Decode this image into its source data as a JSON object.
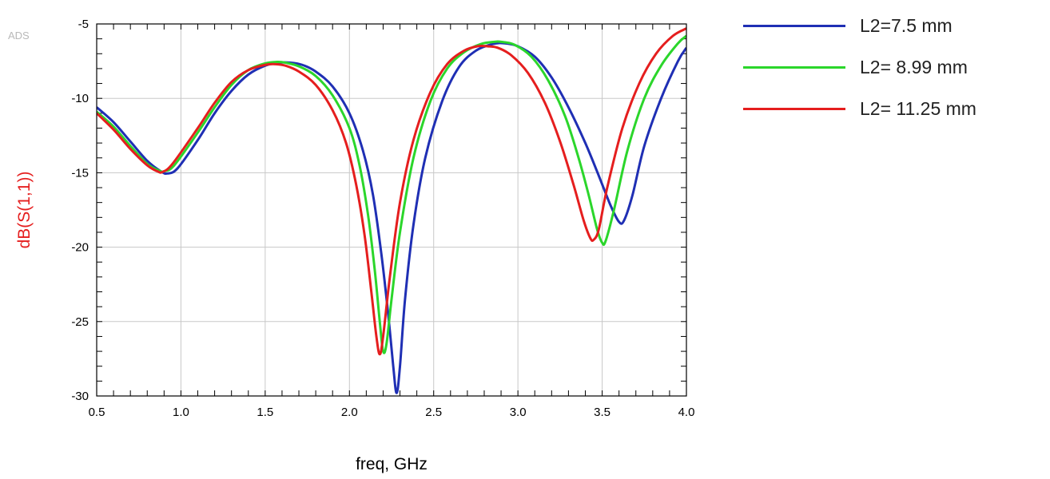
{
  "chart_data": {
    "type": "line",
    "watermark": "ADS",
    "xlabel": "freq, GHz",
    "ylabel": "dB(S(1,1))",
    "xlim": [
      0.5,
      4.0
    ],
    "ylim": [
      -30,
      -5
    ],
    "xticks": [
      "0.5",
      "1.0",
      "1.5",
      "2.0",
      "2.5",
      "3.0",
      "3.5",
      "4.0"
    ],
    "yticks": [
      "-5",
      "-10",
      "-15",
      "-20",
      "-25",
      "-30"
    ],
    "grid": true,
    "legend_position": "top-right, outside plot",
    "series": [
      {
        "name": "L2=7.5 mm",
        "color": "#1f2fb4",
        "points": [
          [
            0.5,
            -10.6
          ],
          [
            0.6,
            -11.6
          ],
          [
            0.7,
            -12.9
          ],
          [
            0.8,
            -14.2
          ],
          [
            0.88,
            -14.9
          ],
          [
            0.92,
            -15.05
          ],
          [
            0.98,
            -14.7
          ],
          [
            1.1,
            -12.8
          ],
          [
            1.2,
            -11.0
          ],
          [
            1.3,
            -9.5
          ],
          [
            1.4,
            -8.4
          ],
          [
            1.5,
            -7.8
          ],
          [
            1.58,
            -7.6
          ],
          [
            1.65,
            -7.6
          ],
          [
            1.72,
            -7.75
          ],
          [
            1.8,
            -8.2
          ],
          [
            1.9,
            -9.2
          ],
          [
            2.0,
            -11.0
          ],
          [
            2.08,
            -13.5
          ],
          [
            2.14,
            -16.5
          ],
          [
            2.19,
            -20.5
          ],
          [
            2.23,
            -24.5
          ],
          [
            2.26,
            -28.0
          ],
          [
            2.28,
            -29.8
          ],
          [
            2.3,
            -28.0
          ],
          [
            2.33,
            -23.5
          ],
          [
            2.38,
            -18.5
          ],
          [
            2.45,
            -14.0
          ],
          [
            2.55,
            -10.2
          ],
          [
            2.65,
            -7.9
          ],
          [
            2.75,
            -6.8
          ],
          [
            2.85,
            -6.35
          ],
          [
            2.92,
            -6.3
          ],
          [
            3.0,
            -6.5
          ],
          [
            3.1,
            -7.2
          ],
          [
            3.2,
            -8.6
          ],
          [
            3.3,
            -10.6
          ],
          [
            3.4,
            -13.0
          ],
          [
            3.48,
            -15.2
          ],
          [
            3.55,
            -17.2
          ],
          [
            3.6,
            -18.3
          ],
          [
            3.63,
            -18.2
          ],
          [
            3.68,
            -16.5
          ],
          [
            3.75,
            -13.2
          ],
          [
            3.85,
            -10.0
          ],
          [
            3.95,
            -7.5
          ],
          [
            4.0,
            -6.6
          ]
        ]
      },
      {
        "name": "L2= 8.99 mm",
        "color": "#2bd62b",
        "points": [
          [
            0.5,
            -10.9
          ],
          [
            0.6,
            -11.9
          ],
          [
            0.7,
            -13.2
          ],
          [
            0.8,
            -14.4
          ],
          [
            0.87,
            -14.85
          ],
          [
            0.9,
            -14.9
          ],
          [
            0.96,
            -14.5
          ],
          [
            1.1,
            -12.3
          ],
          [
            1.2,
            -10.6
          ],
          [
            1.3,
            -9.1
          ],
          [
            1.4,
            -8.1
          ],
          [
            1.5,
            -7.65
          ],
          [
            1.57,
            -7.55
          ],
          [
            1.62,
            -7.6
          ],
          [
            1.7,
            -7.85
          ],
          [
            1.8,
            -8.5
          ],
          [
            1.9,
            -9.8
          ],
          [
            2.0,
            -12.0
          ],
          [
            2.06,
            -14.5
          ],
          [
            2.11,
            -17.8
          ],
          [
            2.15,
            -21.5
          ],
          [
            2.18,
            -25.0
          ],
          [
            2.2,
            -27.0
          ],
          [
            2.22,
            -26.5
          ],
          [
            2.25,
            -23.5
          ],
          [
            2.3,
            -19.0
          ],
          [
            2.38,
            -14.0
          ],
          [
            2.48,
            -10.2
          ],
          [
            2.58,
            -8.0
          ],
          [
            2.68,
            -6.9
          ],
          [
            2.78,
            -6.35
          ],
          [
            2.86,
            -6.2
          ],
          [
            2.9,
            -6.2
          ],
          [
            2.98,
            -6.4
          ],
          [
            3.08,
            -7.2
          ],
          [
            3.18,
            -8.8
          ],
          [
            3.28,
            -11.2
          ],
          [
            3.36,
            -14.0
          ],
          [
            3.42,
            -16.5
          ],
          [
            3.47,
            -18.8
          ],
          [
            3.5,
            -19.7
          ],
          [
            3.52,
            -19.6
          ],
          [
            3.57,
            -17.5
          ],
          [
            3.65,
            -13.5
          ],
          [
            3.75,
            -10.0
          ],
          [
            3.85,
            -7.8
          ],
          [
            3.95,
            -6.3
          ],
          [
            4.0,
            -5.8
          ]
        ]
      },
      {
        "name": "L2= 11.25 mm",
        "color": "#e51e1e",
        "points": [
          [
            0.5,
            -11.0
          ],
          [
            0.6,
            -12.1
          ],
          [
            0.7,
            -13.4
          ],
          [
            0.8,
            -14.5
          ],
          [
            0.86,
            -14.9
          ],
          [
            0.89,
            -14.95
          ],
          [
            0.95,
            -14.4
          ],
          [
            1.1,
            -12.0
          ],
          [
            1.2,
            -10.3
          ],
          [
            1.3,
            -8.9
          ],
          [
            1.4,
            -8.1
          ],
          [
            1.5,
            -7.75
          ],
          [
            1.56,
            -7.7
          ],
          [
            1.62,
            -7.8
          ],
          [
            1.7,
            -8.2
          ],
          [
            1.8,
            -9.1
          ],
          [
            1.9,
            -10.8
          ],
          [
            1.98,
            -13.0
          ],
          [
            2.04,
            -15.8
          ],
          [
            2.09,
            -19.2
          ],
          [
            2.13,
            -23.0
          ],
          [
            2.16,
            -26.0
          ],
          [
            2.18,
            -27.2
          ],
          [
            2.2,
            -26.0
          ],
          [
            2.24,
            -22.0
          ],
          [
            2.3,
            -17.0
          ],
          [
            2.38,
            -12.8
          ],
          [
            2.48,
            -9.6
          ],
          [
            2.58,
            -7.7
          ],
          [
            2.68,
            -6.8
          ],
          [
            2.76,
            -6.5
          ],
          [
            2.82,
            -6.5
          ],
          [
            2.88,
            -6.6
          ],
          [
            2.96,
            -7.1
          ],
          [
            3.06,
            -8.3
          ],
          [
            3.16,
            -10.3
          ],
          [
            3.25,
            -12.9
          ],
          [
            3.33,
            -15.8
          ],
          [
            3.39,
            -18.2
          ],
          [
            3.43,
            -19.4
          ],
          [
            3.45,
            -19.5
          ],
          [
            3.48,
            -18.8
          ],
          [
            3.53,
            -16.0
          ],
          [
            3.62,
            -12.0
          ],
          [
            3.72,
            -9.0
          ],
          [
            3.82,
            -7.0
          ],
          [
            3.92,
            -5.8
          ],
          [
            4.0,
            -5.3
          ]
        ]
      }
    ]
  }
}
